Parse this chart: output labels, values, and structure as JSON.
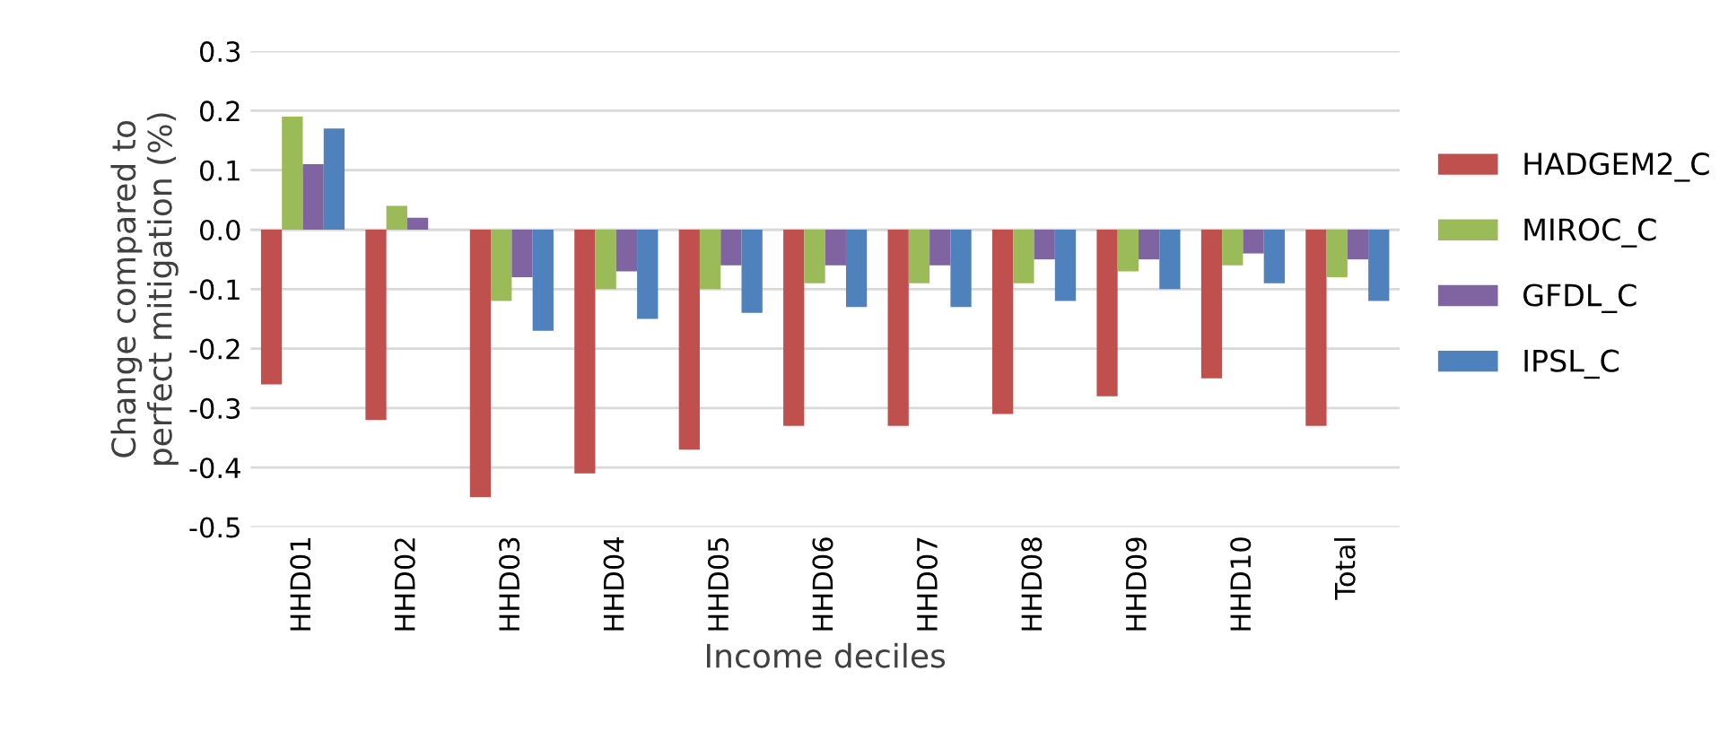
{
  "chart_data": {
    "type": "bar",
    "xlabel": "Income deciles",
    "ylabel": "Change compared to\nperfect mitigation (%)",
    "categories": [
      "HHD01",
      "HHD02",
      "HHD03",
      "HHD04",
      "HHD05",
      "HHD06",
      "HHD07",
      "HHD08",
      "HHD09",
      "HHD10",
      "Total"
    ],
    "series": [
      {
        "name": "HADGEM2_C",
        "color": "#c0504d",
        "values": [
          -0.26,
          -0.32,
          -0.45,
          -0.41,
          -0.37,
          -0.33,
          -0.33,
          -0.31,
          -0.28,
          -0.25,
          -0.33
        ]
      },
      {
        "name": "MIROC_C",
        "color": "#9bbb59",
        "values": [
          0.19,
          0.04,
          -0.12,
          -0.1,
          -0.1,
          -0.09,
          -0.09,
          -0.09,
          -0.07,
          -0.06,
          -0.08
        ]
      },
      {
        "name": "GFDL_C",
        "color": "#8064a2",
        "values": [
          0.11,
          0.02,
          -0.08,
          -0.07,
          -0.06,
          -0.06,
          -0.06,
          -0.05,
          -0.05,
          -0.04,
          -0.05
        ]
      },
      {
        "name": "IPSL_C",
        "color": "#4f81bd",
        "values": [
          0.17,
          0.0,
          -0.17,
          -0.15,
          -0.14,
          -0.13,
          -0.13,
          -0.12,
          -0.1,
          -0.09,
          -0.12
        ]
      }
    ],
    "ylim": [
      -0.5,
      0.3
    ],
    "yticks": [
      {
        "value": -0.5,
        "label": "-0.5"
      },
      {
        "value": -0.4,
        "label": "-0.4"
      },
      {
        "value": -0.3,
        "label": "-0.3"
      },
      {
        "value": -0.2,
        "label": "-0.2"
      },
      {
        "value": -0.1,
        "label": "-0.1"
      },
      {
        "value": 0,
        "label": "0.0"
      },
      {
        "value": 0.1,
        "label": "0.1"
      },
      {
        "value": 0.2,
        "label": "0.2"
      },
      {
        "value": 0.3,
        "label": "0.3"
      }
    ],
    "grid": "y",
    "legend": "right"
  }
}
